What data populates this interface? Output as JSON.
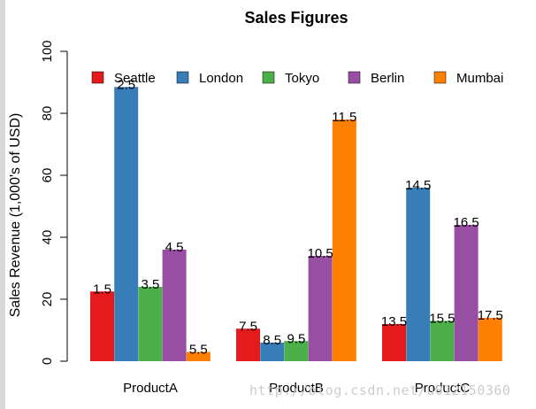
{
  "chart_data": {
    "type": "bar",
    "title": "Sales Figures",
    "xlabel": "",
    "ylabel": "Sales Revenue (1,000's of USD)",
    "ylim": [
      0,
      100
    ],
    "yticks": [
      0,
      20,
      40,
      60,
      80,
      100
    ],
    "categories": [
      "ProductA",
      "ProductB",
      "ProductC"
    ],
    "legend_position": "top",
    "series": [
      {
        "name": "Seattle",
        "color": "#e41a1c",
        "values": [
          22.5,
          10.5,
          12
        ],
        "labels": [
          "1.5",
          "7.5",
          "13.5"
        ]
      },
      {
        "name": "London",
        "color": "#377eb8",
        "values": [
          88.5,
          6,
          56
        ],
        "labels": [
          "2.5",
          "8.5",
          "14.5"
        ]
      },
      {
        "name": "Tokyo",
        "color": "#4daf4a",
        "values": [
          24,
          6.5,
          13
        ],
        "labels": [
          "3.5",
          "9.5",
          "15.5"
        ]
      },
      {
        "name": "Berlin",
        "color": "#984ea3",
        "values": [
          36,
          34,
          44
        ],
        "labels": [
          "4.5",
          "10.5",
          "16.5"
        ]
      },
      {
        "name": "Mumbai",
        "color": "#ff7f00",
        "values": [
          3,
          78,
          14
        ],
        "labels": [
          "5.5",
          "11.5",
          "17.5"
        ]
      }
    ]
  },
  "watermark": "http://blog.csdn.net/u012150360"
}
